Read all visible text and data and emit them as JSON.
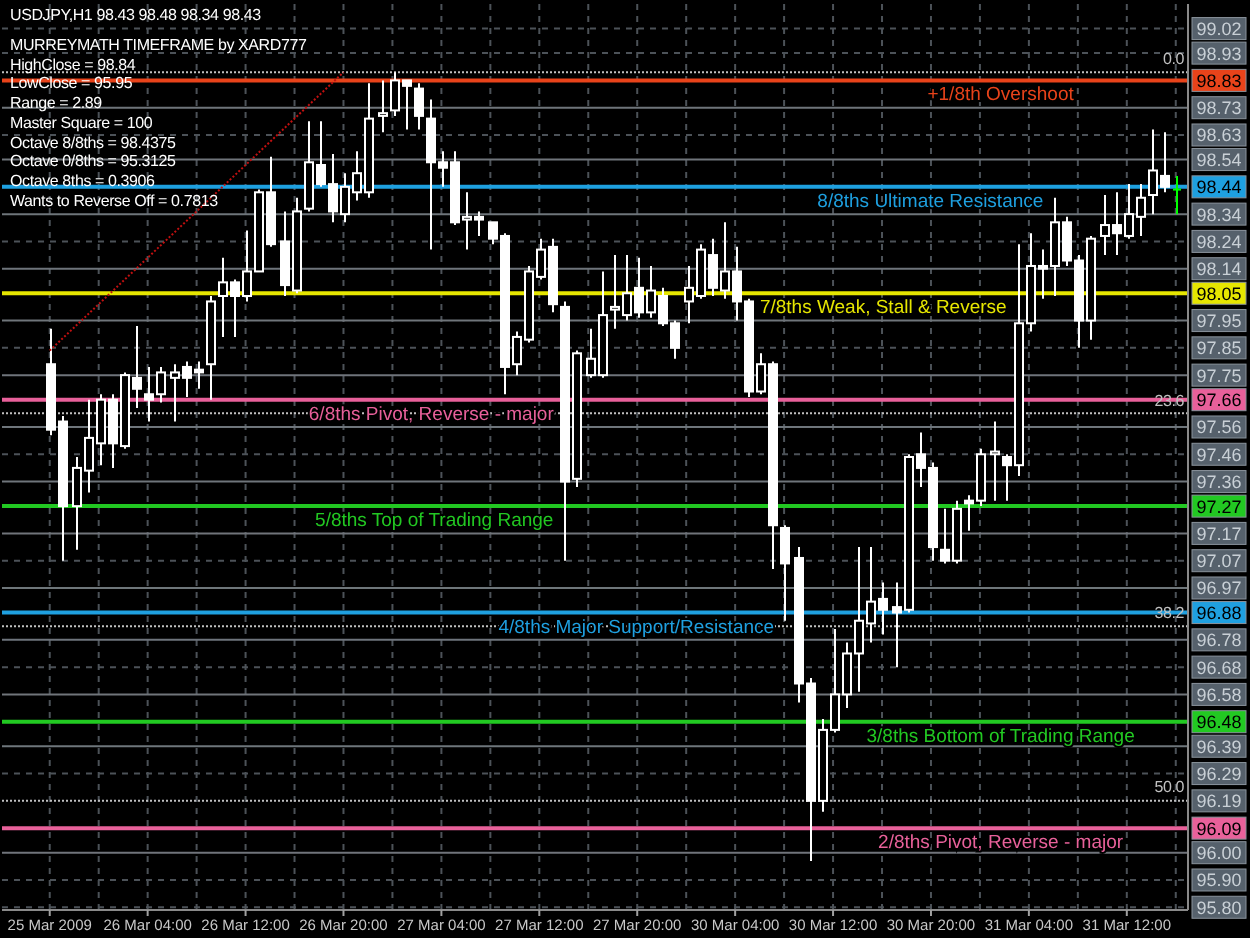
{
  "chart_data": {
    "type": "candlestick",
    "title": "USDJPY,H1 98.43 98.48 98.34 98.43",
    "subtitle": "MURREYMATH TIMEFRAME by XARD777",
    "annotations": [
      "HighClose = 98.84",
      "LowClose = 95.95",
      "Range = 2.89",
      "Master Square = 100",
      "Octave 8/8ths = 98.4375",
      "Octave 0/8ths = 95.3125",
      "Octave 8ths = 0.3906",
      "Wants to Reverse Off = 0.7813",
      {
        "text": "0.0",
        "y": 98.86
      },
      {
        "text": "23.6",
        "y": 97.61
      },
      {
        "text": "38.2",
        "y": 96.83
      },
      {
        "text": "50.0",
        "y": 96.19
      }
    ],
    "categories": [
      "25 Mar 2009",
      null,
      null,
      null,
      null,
      null,
      null,
      null,
      "26 Mar 04:00",
      null,
      null,
      null,
      null,
      null,
      null,
      null,
      "26 Mar 12:00",
      null,
      null,
      null,
      null,
      null,
      null,
      null,
      "26 Mar 20:00",
      null,
      null,
      null,
      null,
      null,
      null,
      null,
      "27 Mar 04:00",
      null,
      null,
      null,
      null,
      null,
      null,
      null,
      "27 Mar 12:00",
      null,
      null,
      null,
      null,
      null,
      null,
      null,
      "27 Mar 20:00",
      null,
      null,
      null,
      null,
      null,
      null,
      null,
      "30 Mar 04:00",
      null,
      null,
      null,
      null,
      null,
      null,
      null,
      "30 Mar 12:00",
      null,
      null,
      null,
      null,
      null,
      null,
      null,
      "30 Mar 20:00",
      null,
      null,
      null,
      null,
      null,
      null,
      null,
      "31 Mar 04:00",
      null,
      null,
      null,
      null,
      null,
      null,
      null,
      "31 Mar 12:00",
      null,
      null,
      null,
      null
    ],
    "ohlc": [
      [
        97.79,
        97.92,
        97.53,
        97.55
      ],
      [
        97.58,
        97.6,
        97.07,
        97.27
      ],
      [
        97.27,
        97.45,
        97.11,
        97.41
      ],
      [
        97.4,
        97.66,
        97.32,
        97.52
      ],
      [
        97.5,
        97.68,
        97.42,
        97.66
      ],
      [
        97.66,
        97.68,
        97.41,
        97.5
      ],
      [
        97.49,
        97.76,
        97.48,
        97.75
      ],
      [
        97.74,
        97.93,
        97.63,
        97.7
      ],
      [
        97.68,
        97.78,
        97.58,
        97.66
      ],
      [
        97.68,
        97.78,
        97.65,
        97.76
      ],
      [
        97.74,
        97.79,
        97.58,
        97.76
      ],
      [
        97.78,
        97.8,
        97.67,
        97.74
      ],
      [
        97.77,
        97.8,
        97.7,
        97.76
      ],
      [
        97.79,
        98.04,
        97.66,
        98.02
      ],
      [
        98.04,
        98.18,
        97.89,
        98.09
      ],
      [
        98.09,
        98.1,
        97.89,
        98.04
      ],
      [
        98.04,
        98.28,
        98.02,
        98.13
      ],
      [
        98.13,
        98.43,
        98.13,
        98.42
      ],
      [
        98.42,
        98.55,
        98.22,
        98.23
      ],
      [
        98.24,
        98.35,
        98.04,
        98.08
      ],
      [
        98.06,
        98.4,
        98.05,
        98.35
      ],
      [
        98.36,
        98.68,
        98.35,
        98.53
      ],
      [
        98.52,
        98.68,
        98.44,
        98.45
      ],
      [
        98.45,
        98.56,
        98.31,
        98.35
      ],
      [
        98.34,
        98.49,
        98.31,
        98.44
      ],
      [
        98.42,
        98.57,
        98.39,
        98.49
      ],
      [
        98.42,
        98.82,
        98.4,
        98.69
      ],
      [
        98.7,
        98.83,
        98.64,
        98.71
      ],
      [
        98.72,
        98.86,
        98.7,
        98.83
      ],
      [
        98.83,
        98.83,
        98.65,
        98.81
      ],
      [
        98.8,
        98.82,
        98.65,
        98.7
      ],
      [
        98.69,
        98.76,
        98.21,
        98.53
      ],
      [
        98.53,
        98.57,
        98.44,
        98.51
      ],
      [
        98.53,
        98.57,
        98.3,
        98.31
      ],
      [
        98.32,
        98.42,
        98.21,
        98.33
      ],
      [
        98.33,
        98.35,
        98.26,
        98.32
      ],
      [
        98.31,
        98.31,
        98.23,
        98.25
      ],
      [
        98.26,
        98.27,
        97.68,
        97.78
      ],
      [
        97.79,
        97.91,
        97.75,
        97.89
      ],
      [
        97.88,
        98.15,
        97.87,
        98.13
      ],
      [
        98.11,
        98.25,
        98.1,
        98.21
      ],
      [
        98.22,
        98.25,
        97.98,
        98.01
      ],
      [
        98.0,
        98.02,
        97.07,
        97.36
      ],
      [
        97.37,
        97.84,
        97.34,
        97.83
      ],
      [
        97.75,
        97.92,
        97.74,
        97.81
      ],
      [
        97.75,
        98.13,
        97.74,
        97.97
      ],
      [
        97.99,
        98.19,
        97.92,
        98.0
      ],
      [
        97.97,
        98.19,
        97.95,
        98.05
      ],
      [
        98.07,
        98.18,
        97.96,
        97.98
      ],
      [
        97.98,
        98.15,
        97.96,
        98.06
      ],
      [
        98.04,
        98.07,
        97.93,
        97.94
      ],
      [
        97.94,
        97.95,
        97.81,
        97.85
      ],
      [
        98.02,
        98.15,
        97.94,
        98.07
      ],
      [
        98.04,
        98.23,
        98.03,
        98.21
      ],
      [
        98.19,
        98.25,
        98.04,
        98.07
      ],
      [
        98.06,
        98.31,
        98.03,
        98.13
      ],
      [
        98.13,
        98.22,
        97.95,
        98.02
      ],
      [
        98.02,
        98.03,
        97.67,
        97.69
      ],
      [
        97.69,
        97.83,
        97.68,
        97.79
      ],
      [
        97.79,
        97.8,
        97.04,
        97.2
      ],
      [
        97.19,
        97.2,
        96.85,
        97.06
      ],
      [
        97.08,
        97.12,
        96.55,
        96.62
      ],
      [
        96.62,
        96.64,
        95.97,
        96.19
      ],
      [
        96.19,
        96.49,
        96.15,
        96.45
      ],
      [
        96.45,
        96.82,
        96.44,
        96.58
      ],
      [
        96.58,
        96.77,
        96.53,
        96.73
      ],
      [
        96.73,
        97.12,
        96.59,
        96.85
      ],
      [
        96.84,
        97.12,
        96.77,
        96.92
      ],
      [
        96.93,
        96.99,
        96.8,
        96.89
      ],
      [
        96.9,
        96.99,
        96.68,
        96.88
      ],
      [
        96.89,
        97.46,
        96.88,
        97.45
      ],
      [
        97.46,
        97.54,
        97.34,
        97.41
      ],
      [
        97.41,
        97.43,
        97.07,
        97.12
      ],
      [
        97.11,
        97.26,
        97.06,
        97.07
      ],
      [
        97.07,
        97.29,
        97.06,
        97.26
      ],
      [
        97.29,
        97.31,
        97.18,
        97.28
      ],
      [
        97.29,
        97.48,
        97.27,
        97.46
      ],
      [
        97.46,
        97.58,
        97.29,
        97.47
      ],
      [
        97.45,
        97.46,
        97.29,
        97.42
      ],
      [
        97.42,
        98.23,
        97.38,
        97.94
      ],
      [
        97.94,
        98.27,
        97.91,
        98.15
      ],
      [
        98.15,
        98.21,
        98.03,
        98.14
      ],
      [
        98.15,
        98.4,
        98.04,
        98.31
      ],
      [
        98.31,
        98.33,
        98.15,
        98.17
      ],
      [
        98.17,
        98.19,
        97.85,
        97.95
      ],
      [
        97.95,
        98.26,
        97.88,
        98.25
      ],
      [
        98.26,
        98.41,
        98.19,
        98.3
      ],
      [
        98.3,
        98.42,
        98.19,
        98.27
      ],
      [
        98.26,
        98.45,
        98.25,
        98.34
      ],
      [
        98.33,
        98.45,
        98.26,
        98.4
      ],
      [
        98.41,
        98.65,
        98.34,
        98.5
      ],
      [
        98.48,
        98.64,
        98.42,
        98.44
      ],
      [
        98.43,
        98.48,
        98.34,
        98.43
      ]
    ],
    "colors": [
      "#ffffff",
      "#ffffff",
      "#ffffff",
      "#ffffff",
      "#ffffff",
      "#ffffff",
      "#ffffff",
      "#ffffff",
      "#ffffff",
      "#ffffff",
      "#ffffff",
      "#ffffff",
      "#ffffff",
      "#ffffff",
      "#ffffff",
      "#ffffff",
      "#ffffff",
      "#ffffff",
      "#ffffff",
      "#ffffff",
      "#ffffff",
      "#ffffff",
      "#ffffff",
      "#ffffff",
      "#ffffff",
      "#ffffff",
      "#ffffff",
      "#ffffff",
      "#ffffff",
      "#ffffff",
      "#ffffff",
      "#ffffff",
      "#ffffff",
      "#ffffff",
      "#ffffff",
      "#ffffff",
      "#ffffff",
      "#ffffff",
      "#ffffff",
      "#ffffff",
      "#ffffff",
      "#ffffff",
      "#ffffff",
      "#ffffff",
      "#ffffff",
      "#ffffff",
      "#ffffff",
      "#ffffff",
      "#ffffff",
      "#ffffff",
      "#ffffff",
      "#ffffff",
      "#ffffff",
      "#ffffff",
      "#ffffff",
      "#ffffff",
      "#ffffff",
      "#ffffff",
      "#ffffff",
      "#ffffff",
      "#ffffff",
      "#ffffff",
      "#ffffff",
      "#ffffff",
      "#ffffff",
      "#ffffff",
      "#ffffff",
      "#ffffff",
      "#ffffff",
      "#ffffff",
      "#ffffff",
      "#ffffff",
      "#ffffff",
      "#ffffff",
      "#ffffff",
      "#ffffff",
      "#ffffff",
      "#ffffff",
      "#ffffff",
      "#ffffff",
      "#ffffff",
      "#ffffff",
      "#ffffff",
      "#ffffff",
      "#ffffff",
      "#ffffff",
      "#ffffff",
      "#ffffff",
      "#ffffff",
      "#ffffff",
      "#ffffff",
      "#ffffff",
      "#00ff00"
    ],
    "series": [
      {
        "type": "line",
        "x": [
          "25 Mar 2009",
          "26 Mar 20:00"
        ],
        "values": [
          97.84,
          98.86
        ],
        "color": "#c01010",
        "line_style": "dotted"
      }
    ],
    "ylim": [
      95.79,
      99.11
    ],
    "yticks": [
      99.02,
      98.93,
      98.83,
      98.73,
      98.63,
      98.54,
      98.44,
      98.34,
      98.24,
      98.14,
      98.05,
      97.95,
      97.85,
      97.75,
      97.66,
      97.56,
      97.46,
      97.36,
      97.27,
      97.17,
      97.07,
      96.97,
      96.88,
      96.78,
      96.68,
      96.58,
      96.48,
      96.39,
      96.29,
      96.19,
      96.09,
      {
        "value": 96,
        "label": "96.00"
      },
      {
        "value": 95.9,
        "label": "95.90"
      },
      {
        "value": 95.8,
        "label": "95.80"
      }
    ],
    "ref_lines": [
      {
        "axis": "y",
        "value": 98.83,
        "label": "+1/8th Overshoot",
        "color": "#e8431a"
      },
      {
        "axis": "y",
        "value": 98.44,
        "label": "8/8ths Ultimate Resistance",
        "color": "#1ea0e0"
      },
      {
        "axis": "y",
        "value": 98.05,
        "label": "7/8ths Weak, Stall & Reverse",
        "color": "#e6e600"
      },
      {
        "axis": "y",
        "value": 97.66,
        "label": "6/8ths Pivot, Reverse - major",
        "color": "#e8609a"
      },
      {
        "axis": "y",
        "value": 97.27,
        "label": "5/8ths Top of Trading Range",
        "color": "#22c822"
      },
      {
        "axis": "y",
        "value": 96.88,
        "label": "4/8ths Major Support/Resistance",
        "color": "#1fa0e0"
      },
      {
        "axis": "y",
        "value": 96.48,
        "label": "3/8ths Bottom of Trading Range",
        "color": "#22c922"
      },
      {
        "axis": "y",
        "value": 96.09,
        "label": "2/8ths Pivot, Reverse - major",
        "color": "#e8619a"
      },
      {
        "axis": "y",
        "value": 98.86,
        "color": "#c0c0c0",
        "line_style": "dotted"
      },
      {
        "axis": "y",
        "value": 97.61,
        "color": "#c1c0c0",
        "line_style": "dotted"
      },
      {
        "axis": "y",
        "value": 96.83,
        "color": "#c0c1c0",
        "line_style": "dotted"
      },
      {
        "axis": "y",
        "value": 96.19,
        "color": "#c0c0c1",
        "line_style": "dotted"
      },
      {
        "axis": "y",
        "value": 98.73,
        "color": "#6e747a"
      },
      {
        "axis": "y",
        "value": 98.54,
        "color": "#6f747a"
      },
      {
        "axis": "y",
        "value": 98.34,
        "color": "#6e757a"
      },
      {
        "axis": "y",
        "value": 98.14,
        "color": "#6e747b"
      },
      {
        "axis": "y",
        "value": 97.95,
        "color": "#6f757a"
      },
      {
        "axis": "y",
        "value": 97.75,
        "color": "#6f747b"
      },
      {
        "axis": "y",
        "value": 97.56,
        "color": "#6e757b"
      },
      {
        "axis": "y",
        "value": 97.36,
        "color": "#6f757b"
      },
      {
        "axis": "y",
        "value": 97.17,
        "color": "#70747a"
      },
      {
        "axis": "y",
        "value": 96.97,
        "color": "#6e767a"
      },
      {
        "axis": "y",
        "value": 96.78,
        "color": "#6e747c"
      },
      {
        "axis": "y",
        "value": 96.58,
        "color": "#70757a"
      },
      {
        "axis": "y",
        "value": 96.39,
        "color": "#6e767b"
      },
      {
        "axis": "y",
        "value": 96.0,
        "color": "#70747b"
      }
    ],
    "grid": true
  }
}
